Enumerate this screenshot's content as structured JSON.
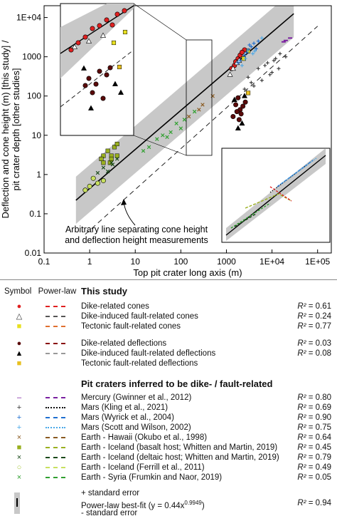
{
  "chart_data": {
    "type": "scatter",
    "xlabel": "Top pit crater long axis (m)",
    "ylabel_line1": "Deflection and cone height (m) [this study] /",
    "ylabel_line2": "pit crater depth [other studies]",
    "x_scale": "log",
    "y_scale": "log",
    "xlim": [
      0.1,
      200000
    ],
    "ylim": [
      0.01,
      20000
    ],
    "x_ticks": [
      "0.1",
      "1",
      "10",
      "100",
      "1000",
      "1E+04",
      "1E+05"
    ],
    "y_ticks": [
      "0.01",
      "0.1",
      "1",
      "10",
      "100",
      "1000",
      "1E+04"
    ],
    "annotation_line1": "Arbitrary line separating cone height",
    "annotation_line2": "and deflection height measurements",
    "best_fit": {
      "coef": 0.44,
      "exp": 0.9949
    },
    "series": [
      {
        "name": "Dike-related cones",
        "color": "#e02020",
        "marker": "circle",
        "points": [
          [
            1500,
            600
          ],
          [
            1800,
            900
          ],
          [
            2000,
            1100
          ],
          [
            2500,
            1500
          ],
          [
            1300,
            500
          ],
          [
            2200,
            1300
          ],
          [
            1600,
            750
          ]
        ]
      },
      {
        "name": "Dike-induced fault-related cones",
        "color": "#ffffff",
        "marker": "triangle",
        "points": [
          [
            1400,
            500
          ],
          [
            1700,
            700
          ],
          [
            1200,
            350
          ],
          [
            1900,
            800
          ]
        ]
      },
      {
        "name": "Tectonic fault-related cones",
        "color": "#e8e020",
        "marker": "square",
        "points": [
          [
            2400,
            900
          ],
          [
            3000,
            1400
          ]
        ]
      },
      {
        "name": "Dike-related deflections",
        "color": "#5a0a0a",
        "marker": "circle",
        "points": [
          [
            1600,
            60
          ],
          [
            2000,
            45
          ],
          [
            1800,
            90
          ],
          [
            2300,
            55
          ],
          [
            1400,
            30
          ],
          [
            2600,
            70
          ],
          [
            1900,
            25
          ],
          [
            2100,
            35
          ],
          [
            1700,
            40
          ]
        ]
      },
      {
        "name": "Dike-induced fault-related deflections",
        "color": "#000000",
        "marker": "triangle",
        "points": [
          [
            1500,
            80
          ],
          [
            2200,
            20
          ],
          [
            1800,
            15
          ],
          [
            2500,
            100
          ]
        ]
      },
      {
        "name": "Tectonic fault-related deflections",
        "color": "#e8c020",
        "marker": "square",
        "points": [
          [
            3000,
            120
          ]
        ]
      },
      {
        "name": "Mercury (Gwinner et al., 2012)",
        "color": "#7a1fa0",
        "marker": "dash",
        "points": [
          [
            18000,
            2400
          ],
          [
            25000,
            3000
          ],
          [
            20000,
            2600
          ]
        ]
      },
      {
        "name": "Mars (Kling et al., 2021)",
        "color": "#333333",
        "marker": "plus",
        "points": [
          [
            3000,
            300
          ],
          [
            5000,
            500
          ],
          [
            8000,
            700
          ],
          [
            12000,
            900
          ],
          [
            6000,
            250
          ],
          [
            4000,
            180
          ],
          [
            10000,
            400
          ],
          [
            15000,
            1200
          ],
          [
            7000,
            600
          ],
          [
            9000,
            350
          ],
          [
            20000,
            1000
          ],
          [
            2500,
            150
          ],
          [
            3500,
            220
          ],
          [
            11000,
            800
          ],
          [
            14000,
            500
          ]
        ]
      },
      {
        "name": "Mars (Wyrick et al., 2004)",
        "color": "#1e6fd0",
        "marker": "plus",
        "points": [
          [
            2000,
            800
          ],
          [
            3000,
            1500
          ],
          [
            4000,
            2200
          ],
          [
            2500,
            1100
          ],
          [
            3500,
            1800
          ],
          [
            5000,
            2500
          ],
          [
            1800,
            700
          ],
          [
            2800,
            1300
          ],
          [
            4500,
            1600
          ],
          [
            3200,
            2000
          ]
        ]
      },
      {
        "name": "Mars (Scott and Wilson, 2002)",
        "color": "#4aa8e8",
        "marker": "plus",
        "points": [
          [
            2200,
            600
          ],
          [
            3800,
            1200
          ],
          [
            6000,
            3000
          ],
          [
            2600,
            900
          ],
          [
            4200,
            1400
          ]
        ]
      },
      {
        "name": "Earth - Hawaii (Okubo et al., 1998)",
        "color": "#8a5a20",
        "marker": "x",
        "points": [
          [
            150,
            30
          ],
          [
            300,
            60
          ],
          [
            500,
            100
          ],
          [
            250,
            45
          ]
        ]
      },
      {
        "name": "Earth - Iceland (basalt host; Whitten and Martin, 2019)",
        "color": "#9ab020",
        "marker": "square",
        "points": [
          [
            2,
            2
          ],
          [
            3,
            3
          ],
          [
            2.5,
            4
          ],
          [
            4,
            3
          ],
          [
            3,
            2.5
          ],
          [
            2,
            3
          ],
          [
            3.5,
            5
          ],
          [
            2.8,
            2
          ],
          [
            4,
            6
          ],
          [
            1.8,
            2.5
          ]
        ]
      },
      {
        "name": "Earth - Iceland (deltaic host; Whitten and Martin, 2019)",
        "color": "#1a4a1a",
        "marker": "x",
        "points": [
          [
            2,
            1.5
          ],
          [
            3,
            2
          ],
          [
            2.5,
            1.2
          ],
          [
            4,
            2.5
          ],
          [
            3.2,
            1.8
          ],
          [
            1.5,
            1.1
          ]
        ]
      },
      {
        "name": "Earth - Iceland (Ferrill et al., 2011)",
        "color": "#c8e060",
        "marker": "circle",
        "points": [
          [
            1,
            0.5
          ],
          [
            1.5,
            0.6
          ],
          [
            1.2,
            0.8
          ],
          [
            2,
            0.7
          ],
          [
            0.8,
            0.4
          ]
        ]
      },
      {
        "name": "Earth - Syria (Frumkin and Naor, 2019)",
        "color": "#30a030",
        "marker": "x",
        "points": [
          [
            15,
            4
          ],
          [
            40,
            10
          ],
          [
            80,
            20
          ],
          [
            100,
            15
          ],
          [
            30,
            8
          ],
          [
            60,
            12
          ],
          [
            200,
            40
          ],
          [
            120,
            25
          ],
          [
            20,
            5
          ],
          [
            50,
            9
          ]
        ]
      }
    ]
  },
  "legend": {
    "head_symbol": "Symbol",
    "head_power": "Power-law",
    "this_study": "This study",
    "pit_craters": "Pit craters inferred to be dike- / fault-related",
    "r2_prefix": "R²",
    "rows": [
      {
        "label": "Dike-related cones",
        "symbol": "●",
        "color": "#e02020",
        "line": "dashed",
        "lcolor": "#e02020",
        "r2": "= 0.61"
      },
      {
        "label": "Dike-induced fault-related cones",
        "symbol": "△",
        "color": "#333333",
        "line": "dashed",
        "lcolor": "#555555",
        "r2": "= 0.24"
      },
      {
        "label": "Tectonic fault-related cones",
        "symbol": "■",
        "color": "#e8e020",
        "line": "dashed",
        "lcolor": "#e07030",
        "r2": "= 0.77"
      },
      {
        "label": "Dike-related deflections",
        "symbol": "●",
        "color": "#5a0a0a",
        "line": "dashed",
        "lcolor": "#8a0a0a",
        "r2": "= 0.03"
      },
      {
        "label": "Dike-induced fault-related deflections",
        "symbol": "▲",
        "color": "#000000",
        "line": "dashed",
        "lcolor": "#999999",
        "r2": "= 0.08"
      },
      {
        "label": "Tectonic fault-related deflections",
        "symbol": "■",
        "color": "#e8c020",
        "line": "none",
        "lcolor": "",
        "r2": ""
      },
      {
        "label": "Mercury (Gwinner et al., 2012)",
        "symbol": "–",
        "color": "#7a1fa0",
        "line": "dashed",
        "lcolor": "#7a1fa0",
        "r2": "= 0.80"
      },
      {
        "label": "Mars (Kling et al., 2021)",
        "symbol": "+",
        "color": "#333333",
        "line": "dotted",
        "lcolor": "#111111",
        "r2": "= 0.69"
      },
      {
        "label": "Mars (Wyrick et al., 2004)",
        "symbol": "+",
        "color": "#1e6fd0",
        "line": "dashed",
        "lcolor": "#1e6fd0",
        "r2": "= 0.90"
      },
      {
        "label": "Mars (Scott and Wilson, 2002)",
        "symbol": "+",
        "color": "#4aa8e8",
        "line": "dotted",
        "lcolor": "#4aa8e8",
        "r2": "= 0.75"
      },
      {
        "label": "Earth - Hawaii (Okubo et al., 1998)",
        "symbol": "×",
        "color": "#8a5a20",
        "line": "dashed",
        "lcolor": "#8a5a20",
        "r2": "= 0.64"
      },
      {
        "label": "Earth - Iceland (basalt host; Whitten and Martin, 2019)",
        "symbol": "■",
        "color": "#9ab020",
        "line": "dashed",
        "lcolor": "#9ab020",
        "r2": "= 0.45"
      },
      {
        "label": "Earth - Iceland (deltaic host; Whitten and Martin, 2019)",
        "symbol": "×",
        "color": "#1a4a1a",
        "line": "dashed",
        "lcolor": "#1a4a1a",
        "r2": "= 0.79"
      },
      {
        "label": "Earth - Iceland (Ferrill et al., 2011)",
        "symbol": "○",
        "color": "#a8c840",
        "line": "dashed",
        "lcolor": "#c8e060",
        "r2": "= 0.49"
      },
      {
        "label": "Earth - Syria (Frumkin and Naor, 2019)",
        "symbol": "×",
        "color": "#30a030",
        "line": "dashed",
        "lcolor": "#30a030",
        "r2": "= 0.05"
      }
    ],
    "fit_plus": "+ standard error",
    "fit_label": "Power-law best-fit (y = 0.44x",
    "fit_exp": "0.9949",
    "fit_close": ")",
    "fit_minus": "- standard error",
    "fit_r2": "= 0.94"
  }
}
